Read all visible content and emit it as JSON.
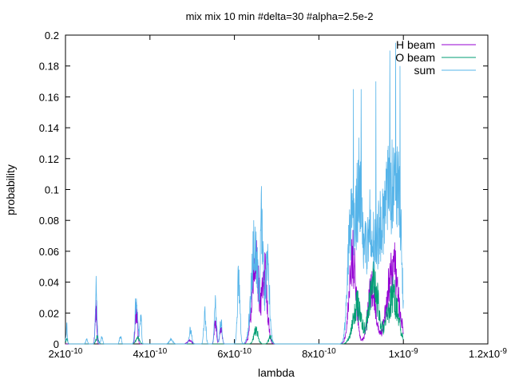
{
  "chart_data": {
    "type": "line",
    "title": "mix mix 10 min #delta=30 #alpha=2.5e-2",
    "xlabel": "lambda",
    "ylabel": "probability",
    "xlim": [
      2e-10,
      1.2e-09
    ],
    "ylim": [
      0,
      0.2
    ],
    "x_ticks": [
      {
        "value": 2e-10,
        "mant": "2x10",
        "exp": "-10"
      },
      {
        "value": 4e-10,
        "mant": "4x10",
        "exp": "-10"
      },
      {
        "value": 6e-10,
        "mant": "6x10",
        "exp": "-10"
      },
      {
        "value": 8e-10,
        "mant": "8x10",
        "exp": "-10"
      },
      {
        "value": 1e-09,
        "mant": "1x10",
        "exp": "-9"
      },
      {
        "value": 1.2e-09,
        "mant": "1.2x10",
        "exp": "-9"
      }
    ],
    "y_ticks": [
      {
        "value": 0,
        "label": "0"
      },
      {
        "value": 0.02,
        "label": "0.02"
      },
      {
        "value": 0.04,
        "label": "0.04"
      },
      {
        "value": 0.06,
        "label": "0.06"
      },
      {
        "value": 0.08,
        "label": "0.08"
      },
      {
        "value": 0.1,
        "label": "0.1"
      },
      {
        "value": 0.12,
        "label": "0.12"
      },
      {
        "value": 0.14,
        "label": "0.14"
      },
      {
        "value": 0.16,
        "label": "0.16"
      },
      {
        "value": 0.18,
        "label": "0.18"
      },
      {
        "value": 0.2,
        "label": "0.2"
      }
    ],
    "grid": false,
    "legend_position": "top-right",
    "x_max_data": 1e-09,
    "series": [
      {
        "name": "H beam",
        "color": "#9400d3",
        "peaks": [
          {
            "x": 2.72e-10,
            "h": 0.03,
            "w": 2e-12
          },
          {
            "x": 3.68e-10,
            "h": 0.03,
            "w": 2.5e-12
          },
          {
            "x": 4.94e-10,
            "h": 0.003,
            "w": 5e-12
          },
          {
            "x": 5.55e-10,
            "h": 0.02,
            "w": 2.5e-12
          },
          {
            "x": 5.68e-10,
            "h": 0.012,
            "w": 3e-12
          },
          {
            "x": 6.5e-10,
            "h": 0.074,
            "w": 8e-12
          },
          {
            "x": 6.72e-10,
            "h": 0.06,
            "w": 6e-12
          },
          {
            "x": 8.8e-10,
            "h": 0.075,
            "w": 8e-12
          },
          {
            "x": 9.25e-10,
            "h": 0.048,
            "w": 9e-12
          },
          {
            "x": 9.75e-10,
            "h": 0.07,
            "w": 1.3e-11
          }
        ],
        "noise": 0.55
      },
      {
        "name": "O beam",
        "color": "#009e73",
        "peaks": [
          {
            "x": 2.03e-10,
            "h": 0.004,
            "w": 2e-12
          },
          {
            "x": 2.75e-10,
            "h": 0.006,
            "w": 3e-12
          },
          {
            "x": 3.71e-10,
            "h": 0.006,
            "w": 4e-12
          },
          {
            "x": 6.51e-10,
            "h": 0.013,
            "w": 5e-12
          },
          {
            "x": 6.85e-10,
            "h": 0.006,
            "w": 4e-12
          },
          {
            "x": 8.9e-10,
            "h": 0.035,
            "w": 1e-11
          },
          {
            "x": 9.3e-10,
            "h": 0.055,
            "w": 1.1e-11
          },
          {
            "x": 9.75e-10,
            "h": 0.045,
            "w": 1.2e-11
          }
        ],
        "noise": 0.6
      },
      {
        "name": "sum",
        "color": "#56b4e9",
        "peaks": [
          {
            "x": 2.03e-10,
            "h": 0.015,
            "w": 1.5e-12
          },
          {
            "x": 2.5e-10,
            "h": 0.004,
            "w": 2e-12
          },
          {
            "x": 2.73e-10,
            "h": 0.045,
            "w": 2e-12
          },
          {
            "x": 2.86e-10,
            "h": 0.006,
            "w": 2e-12
          },
          {
            "x": 3.3e-10,
            "h": 0.007,
            "w": 2e-12
          },
          {
            "x": 3.68e-10,
            "h": 0.04,
            "w": 3e-12
          },
          {
            "x": 3.78e-10,
            "h": 0.025,
            "w": 2e-12
          },
          {
            "x": 4.5e-10,
            "h": 0.004,
            "w": 4e-12
          },
          {
            "x": 4.96e-10,
            "h": 0.012,
            "w": 3e-12
          },
          {
            "x": 5.3e-10,
            "h": 0.025,
            "w": 2.5e-12
          },
          {
            "x": 5.55e-10,
            "h": 0.033,
            "w": 2.5e-12
          },
          {
            "x": 5.68e-10,
            "h": 0.02,
            "w": 2.5e-12
          },
          {
            "x": 6.1e-10,
            "h": 0.055,
            "w": 3e-12
          },
          {
            "x": 6.48e-10,
            "h": 0.085,
            "w": 8e-12
          },
          {
            "x": 6.65e-10,
            "h": 0.1,
            "w": 3e-12
          },
          {
            "x": 6.78e-10,
            "h": 0.07,
            "w": 5e-12
          },
          {
            "x": 8.75e-10,
            "h": 0.1,
            "w": 7e-12
          },
          {
            "x": 8.95e-10,
            "h": 0.13,
            "w": 8e-12
          },
          {
            "x": 9.2e-10,
            "h": 0.1,
            "w": 1e-11
          },
          {
            "x": 9.45e-10,
            "h": 0.09,
            "w": 1e-11
          },
          {
            "x": 9.7e-10,
            "h": 0.135,
            "w": 1.1e-11
          },
          {
            "x": 9.9e-10,
            "h": 0.1,
            "w": 7e-12
          }
        ],
        "spikes": [
          {
            "x": 8.82e-10,
            "h": 0.165
          },
          {
            "x": 9e-10,
            "h": 0.165
          },
          {
            "x": 9.35e-10,
            "h": 0.17
          },
          {
            "x": 9.68e-10,
            "h": 0.19
          },
          {
            "x": 9.82e-10,
            "h": 0.195
          },
          {
            "x": 9.92e-10,
            "h": 0.18
          }
        ],
        "noise": 0.5
      }
    ]
  }
}
